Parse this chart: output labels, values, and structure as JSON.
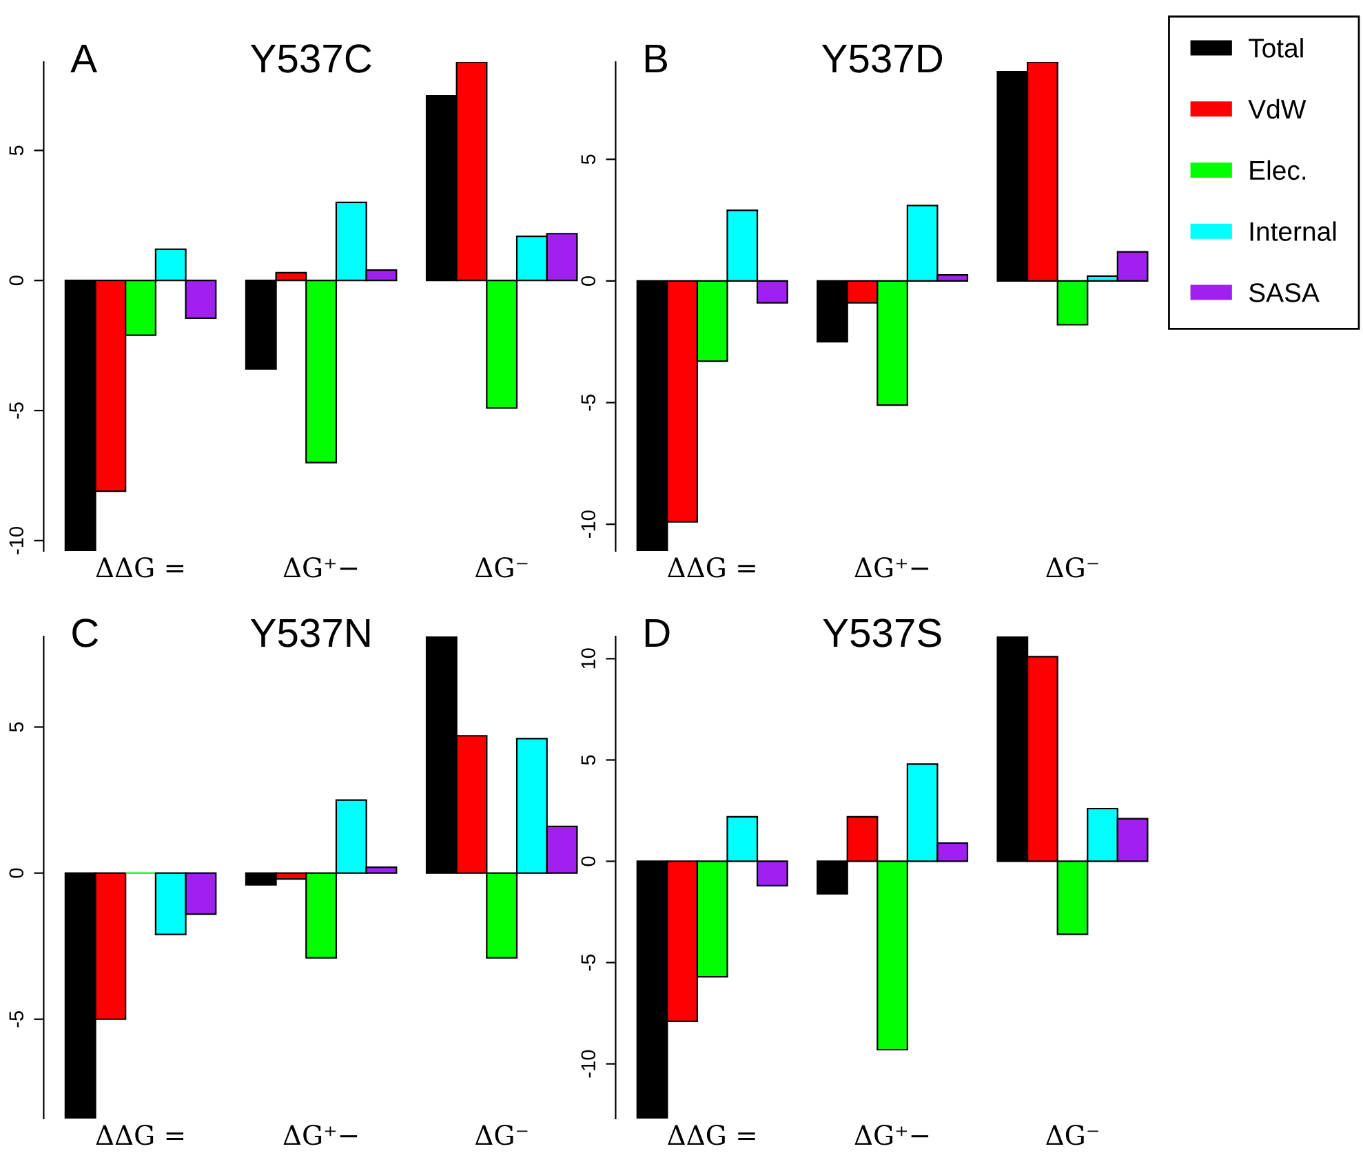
{
  "chart_data": [
    {
      "type": "bar",
      "title": "Y537C",
      "annotations": [
        "A"
      ],
      "categories": [
        "ΔΔG =",
        "ΔG⁺−",
        "ΔG⁻"
      ],
      "series": [
        {
          "name": "Total",
          "color": "#000000",
          "values": [
            -10.4,
            -3.4,
            7.1
          ]
        },
        {
          "name": "VdW",
          "color": "#ff0000",
          "values": [
            -8.1,
            0.3,
            8.4
          ]
        },
        {
          "name": "Elec.",
          "color": "#00ff00",
          "values": [
            -2.1,
            -7.0,
            -4.9
          ]
        },
        {
          "name": "Internal",
          "color": "#00ffff",
          "values": [
            1.2,
            3.0,
            1.7
          ]
        },
        {
          "name": "SASA",
          "color": "#a020f0",
          "values": [
            -1.45,
            0.4,
            1.8
          ]
        }
      ],
      "ylim": [
        -10.4,
        8.4
      ],
      "yticks": [
        -10,
        -5,
        0,
        5
      ],
      "legend": "top right"
    },
    {
      "type": "bar",
      "title": "Y537D",
      "annotations": [
        "B"
      ],
      "categories": [
        "ΔΔG =",
        "ΔG⁺−",
        "ΔG⁻"
      ],
      "series": [
        {
          "name": "Total",
          "color": "#000000",
          "values": [
            -11.1,
            -2.5,
            8.6
          ]
        },
        {
          "name": "VdW",
          "color": "#ff0000",
          "values": [
            -9.9,
            -0.9,
            9.0
          ]
        },
        {
          "name": "Elec.",
          "color": "#00ff00",
          "values": [
            -3.3,
            -5.1,
            -1.8
          ]
        },
        {
          "name": "Internal",
          "color": "#00ffff",
          "values": [
            2.9,
            3.1,
            0.2
          ]
        },
        {
          "name": "SASA",
          "color": "#a020f0",
          "values": [
            -0.9,
            0.25,
            1.2
          ]
        }
      ],
      "ylim": [
        -11.1,
        9.0
      ],
      "yticks": [
        -10,
        -5,
        0,
        5
      ]
    },
    {
      "type": "bar",
      "title": "Y537N",
      "annotations": [
        "C"
      ],
      "categories": [
        "ΔΔG =",
        "ΔG⁺−",
        "ΔG⁻"
      ],
      "series": [
        {
          "name": "Total",
          "color": "#000000",
          "values": [
            -8.4,
            -0.4,
            8.1
          ]
        },
        {
          "name": "VdW",
          "color": "#ff0000",
          "values": [
            -5.0,
            -0.2,
            4.7
          ]
        },
        {
          "name": "Elec.",
          "color": "#00ff00",
          "values": [
            0,
            -2.9,
            -2.9
          ]
        },
        {
          "name": "Internal",
          "color": "#00ffff",
          "values": [
            -2.1,
            2.5,
            4.6
          ]
        },
        {
          "name": "SASA",
          "color": "#a020f0",
          "values": [
            -1.4,
            0.2,
            1.6
          ]
        }
      ],
      "ylim": [
        -8.4,
        8.1
      ],
      "yticks": [
        -5,
        0,
        5
      ]
    },
    {
      "type": "bar",
      "title": "Y537S",
      "annotations": [
        "D"
      ],
      "categories": [
        "ΔΔG =",
        "ΔG⁺−",
        "ΔG⁻"
      ],
      "series": [
        {
          "name": "Total",
          "color": "#000000",
          "values": [
            -12.7,
            -1.6,
            11.1
          ]
        },
        {
          "name": "VdW",
          "color": "#ff0000",
          "values": [
            -7.9,
            2.2,
            10.1
          ]
        },
        {
          "name": "Elec.",
          "color": "#00ff00",
          "values": [
            -5.7,
            -9.3,
            -3.6
          ]
        },
        {
          "name": "Internal",
          "color": "#00ffff",
          "values": [
            2.2,
            4.8,
            2.6
          ]
        },
        {
          "name": "SASA",
          "color": "#a020f0",
          "values": [
            -1.2,
            0.9,
            2.1
          ]
        }
      ],
      "ylim": [
        -12.7,
        11.1
      ],
      "yticks": [
        -10,
        -5,
        0,
        5,
        10
      ]
    }
  ]
}
